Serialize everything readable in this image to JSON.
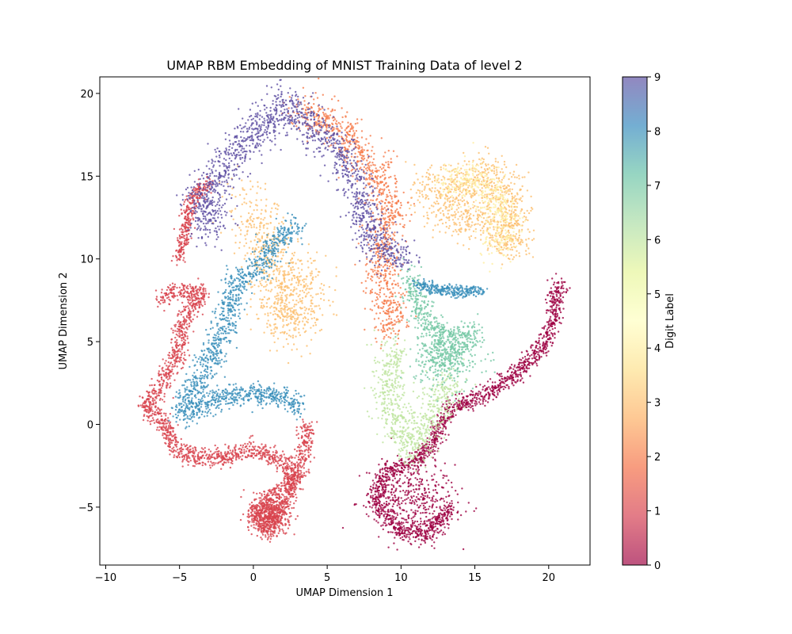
{
  "chart_data": {
    "type": "scatter",
    "title": "UMAP RBM Embedding of MNIST Training Data of level 2",
    "xlabel": "UMAP Dimension 1",
    "ylabel": "UMAP Dimension 2",
    "xlim": [
      -10.4,
      22.8
    ],
    "ylim": [
      -8.5,
      21.0
    ],
    "x_ticks": [
      -10,
      -5,
      0,
      5,
      10,
      15,
      20
    ],
    "y_ticks": [
      -5,
      0,
      5,
      10,
      15,
      20
    ],
    "x_tick_labels": [
      "−10",
      "−5",
      "0",
      "5",
      "10",
      "15",
      "20"
    ],
    "y_tick_labels": [
      "−5",
      "0",
      "5",
      "10",
      "15",
      "20"
    ],
    "grid": false,
    "colorbar": {
      "label": "Digit Label",
      "range": [
        0,
        9
      ],
      "ticks": [
        0,
        1,
        2,
        3,
        4,
        5,
        6,
        7,
        8,
        9
      ],
      "tick_labels": [
        "0",
        "1",
        "2",
        "3",
        "4",
        "5",
        "6",
        "7",
        "8",
        "9"
      ],
      "colormap": "Spectral",
      "stops": [
        "#9e0142",
        "#d53e4f",
        "#f46d43",
        "#fdae61",
        "#fee08b",
        "#ffffbf",
        "#e6f598",
        "#abdda4",
        "#66c2a5",
        "#3288bd",
        "#5e4fa2"
      ]
    },
    "clusters": [
      {
        "label": 0,
        "region": "lower-right loop and tail",
        "path": [
          [
            13.5,
            -5
          ],
          [
            12,
            -6.6
          ],
          [
            10,
            -6.5
          ],
          [
            8.3,
            -4.8
          ],
          [
            8.8,
            -3
          ],
          [
            10.6,
            -2.4
          ],
          [
            12,
            -1.4
          ],
          [
            13,
            0.6
          ],
          [
            14,
            1.2
          ],
          [
            16,
            1.9
          ],
          [
            18,
            3.2
          ],
          [
            19.5,
            4.6
          ],
          [
            20.4,
            6.4
          ],
          [
            20.6,
            8.3
          ],
          [
            21,
            8.3
          ]
        ],
        "spread": 0.28
      },
      {
        "label": 0,
        "region": "lower-right loop fill",
        "center": [
          10.7,
          -4.5
        ],
        "spread": 1.5
      },
      {
        "label": 1,
        "region": "left outline and bottom lobe",
        "path": [
          [
            -6.2,
            7.5
          ],
          [
            -5.5,
            8
          ],
          [
            -3.5,
            8
          ],
          [
            -4.8,
            6
          ],
          [
            -5.2,
            4
          ],
          [
            -6.2,
            2.5
          ],
          [
            -7.3,
            1
          ],
          [
            -6,
            0.2
          ],
          [
            -5.3,
            -1.5
          ],
          [
            -4,
            -2
          ],
          [
            -2,
            -2
          ],
          [
            0,
            -1.5
          ],
          [
            2,
            -2.2
          ],
          [
            2.8,
            -3.5
          ],
          [
            2,
            -5
          ],
          [
            0.8,
            -6.5
          ],
          [
            0.1,
            -5.4
          ],
          [
            1,
            -4.6
          ],
          [
            2.8,
            -3.3
          ],
          [
            3.4,
            -2
          ],
          [
            3.6,
            0
          ]
        ],
        "spread": 0.3
      },
      {
        "label": 1,
        "region": "lower-left lobe fill",
        "center": [
          1.1,
          -5.5
        ],
        "spread": 0.7
      },
      {
        "label": 1,
        "region": "left edge of upper cluster",
        "path": [
          [
            -5,
            10
          ],
          [
            -4.2,
            13.5
          ],
          [
            -3,
            14.6
          ]
        ],
        "spread": 0.25
      },
      {
        "label": 2,
        "region": "upper centre and right arm",
        "path": [
          [
            3,
            19
          ],
          [
            5.5,
            18
          ],
          [
            7.5,
            16
          ],
          [
            8.5,
            15
          ],
          [
            9.4,
            13
          ],
          [
            8.5,
            11
          ],
          [
            9,
            8.2
          ],
          [
            9.4,
            6.6
          ],
          [
            8.9,
            5.4
          ]
        ],
        "spread": 0.6
      },
      {
        "label": 3,
        "region": "upper centre",
        "path": [
          [
            2.8,
            9.5
          ],
          [
            3.6,
            7
          ],
          [
            2,
            5.8
          ],
          [
            1.4,
            10
          ],
          [
            -0.4,
            13.5
          ]
        ],
        "spread": 0.9
      },
      {
        "label": 3,
        "region": "upper-right cluster",
        "path": [
          [
            11.3,
            14.3
          ],
          [
            14,
            14.3
          ],
          [
            16,
            15
          ],
          [
            17.5,
            13.5
          ],
          [
            17.8,
            11
          ],
          [
            15,
            12.5
          ],
          [
            12.5,
            12.6
          ]
        ],
        "spread": 0.7
      },
      {
        "label": 4,
        "region": "upper-right cluster",
        "path": [
          [
            13,
            14.5
          ],
          [
            15.5,
            14.8
          ],
          [
            17,
            12.8
          ],
          [
            16.5,
            10.5
          ]
        ],
        "spread": 0.6
      },
      {
        "label": 6,
        "region": "right central band",
        "path": [
          [
            9.6,
            4.8
          ],
          [
            9.1,
            2
          ],
          [
            9.8,
            -0.5
          ],
          [
            10.8,
            -1.6
          ],
          [
            12.4,
            1
          ],
          [
            13.5,
            3
          ]
        ],
        "spread": 0.6
      },
      {
        "label": 7,
        "region": "right centre blob",
        "center": [
          13.1,
          4.2
        ],
        "spread": 1.1
      },
      {
        "label": 7,
        "region": "right centre blob neck",
        "path": [
          [
            10.5,
            9
          ],
          [
            11.5,
            6.5
          ],
          [
            13,
            5
          ],
          [
            15,
            5.5
          ]
        ],
        "spread": 0.4
      },
      {
        "label": 8,
        "region": "left diagonal strands",
        "path": [
          [
            -5,
            0.5
          ],
          [
            -3.5,
            3
          ],
          [
            -2,
            5.5
          ],
          [
            -1.2,
            8.5
          ],
          [
            0.5,
            9.5
          ],
          [
            1.5,
            11
          ],
          [
            3,
            12
          ]
        ],
        "spread": 0.45
      },
      {
        "label": 8,
        "region": "left lower strands",
        "path": [
          [
            -4.5,
            0.7
          ],
          [
            -2,
            1.7
          ],
          [
            0.5,
            1.8
          ],
          [
            2.5,
            1.5
          ],
          [
            3.3,
            1
          ]
        ],
        "spread": 0.35
      },
      {
        "label": 8,
        "region": "right arm tip",
        "path": [
          [
            11,
            8.5
          ],
          [
            13.5,
            8
          ],
          [
            15.6,
            8.1
          ]
        ],
        "spread": 0.18
      },
      {
        "label": 9,
        "region": "upper left and centre",
        "path": [
          [
            -3.2,
            11.5
          ],
          [
            -2.6,
            12.6
          ],
          [
            -3.8,
            13.5
          ],
          [
            0,
            17.5
          ],
          [
            2,
            19.4
          ],
          [
            6,
            16.5
          ],
          [
            8.5,
            10.5
          ],
          [
            10.5,
            10
          ]
        ],
        "spread": 0.6
      }
    ]
  }
}
